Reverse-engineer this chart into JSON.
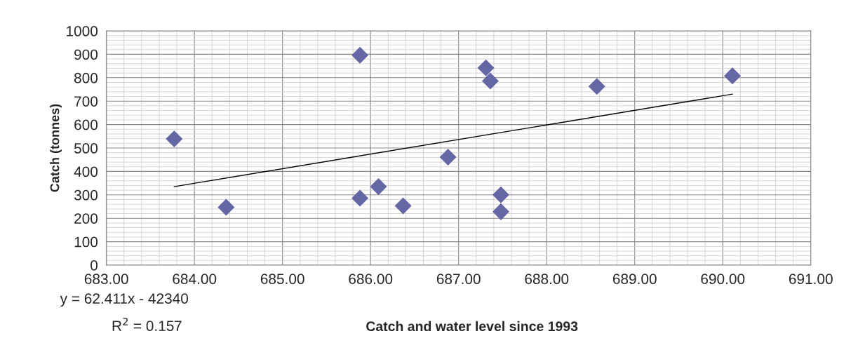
{
  "chart_data": {
    "type": "scatter",
    "xlabel": "Catch and water level since 1993",
    "ylabel": "Catch (tonnes)",
    "annotations": [
      "y = 62.411x - 42340",
      "R$^{2}$ = 0.157"
    ],
    "series": [
      {
        "color": "#6467a4",
        "marker": "diamond",
        "x": [
          683.77,
          684.36,
          685.88,
          685.88,
          686.09,
          686.37,
          686.88,
          687.31,
          687.36,
          687.48,
          687.48,
          688.57,
          690.11
        ],
        "values": [
          539,
          247,
          896,
          286,
          335,
          253,
          461,
          842,
          786,
          300,
          228,
          763,
          808
        ]
      },
      {
        "type": "line",
        "color": "#000000",
        "marker": "none",
        "line_style": "solid",
        "x": [
          683.77,
          690.11
        ],
        "values": [
          335,
          730
        ]
      }
    ],
    "xlim": [
      683,
      691
    ],
    "ylim": [
      0,
      1000
    ],
    "xticks": [
      {
        "value": 683,
        "label": "683.00"
      },
      {
        "value": 684,
        "label": "684.00"
      },
      {
        "value": 685,
        "label": "685.00"
      },
      {
        "value": 686,
        "label": "686.00"
      },
      {
        "value": 687,
        "label": "687.00"
      },
      {
        "value": 688,
        "label": "688.00"
      },
      {
        "value": 689,
        "label": "689.00"
      },
      {
        "value": 690,
        "label": "690.00"
      },
      {
        "value": 691,
        "label": "691.00"
      }
    ],
    "yticks": [
      0,
      100,
      200,
      300,
      400,
      500,
      600,
      700,
      800,
      900,
      1000
    ],
    "grid": true,
    "legend": false
  }
}
